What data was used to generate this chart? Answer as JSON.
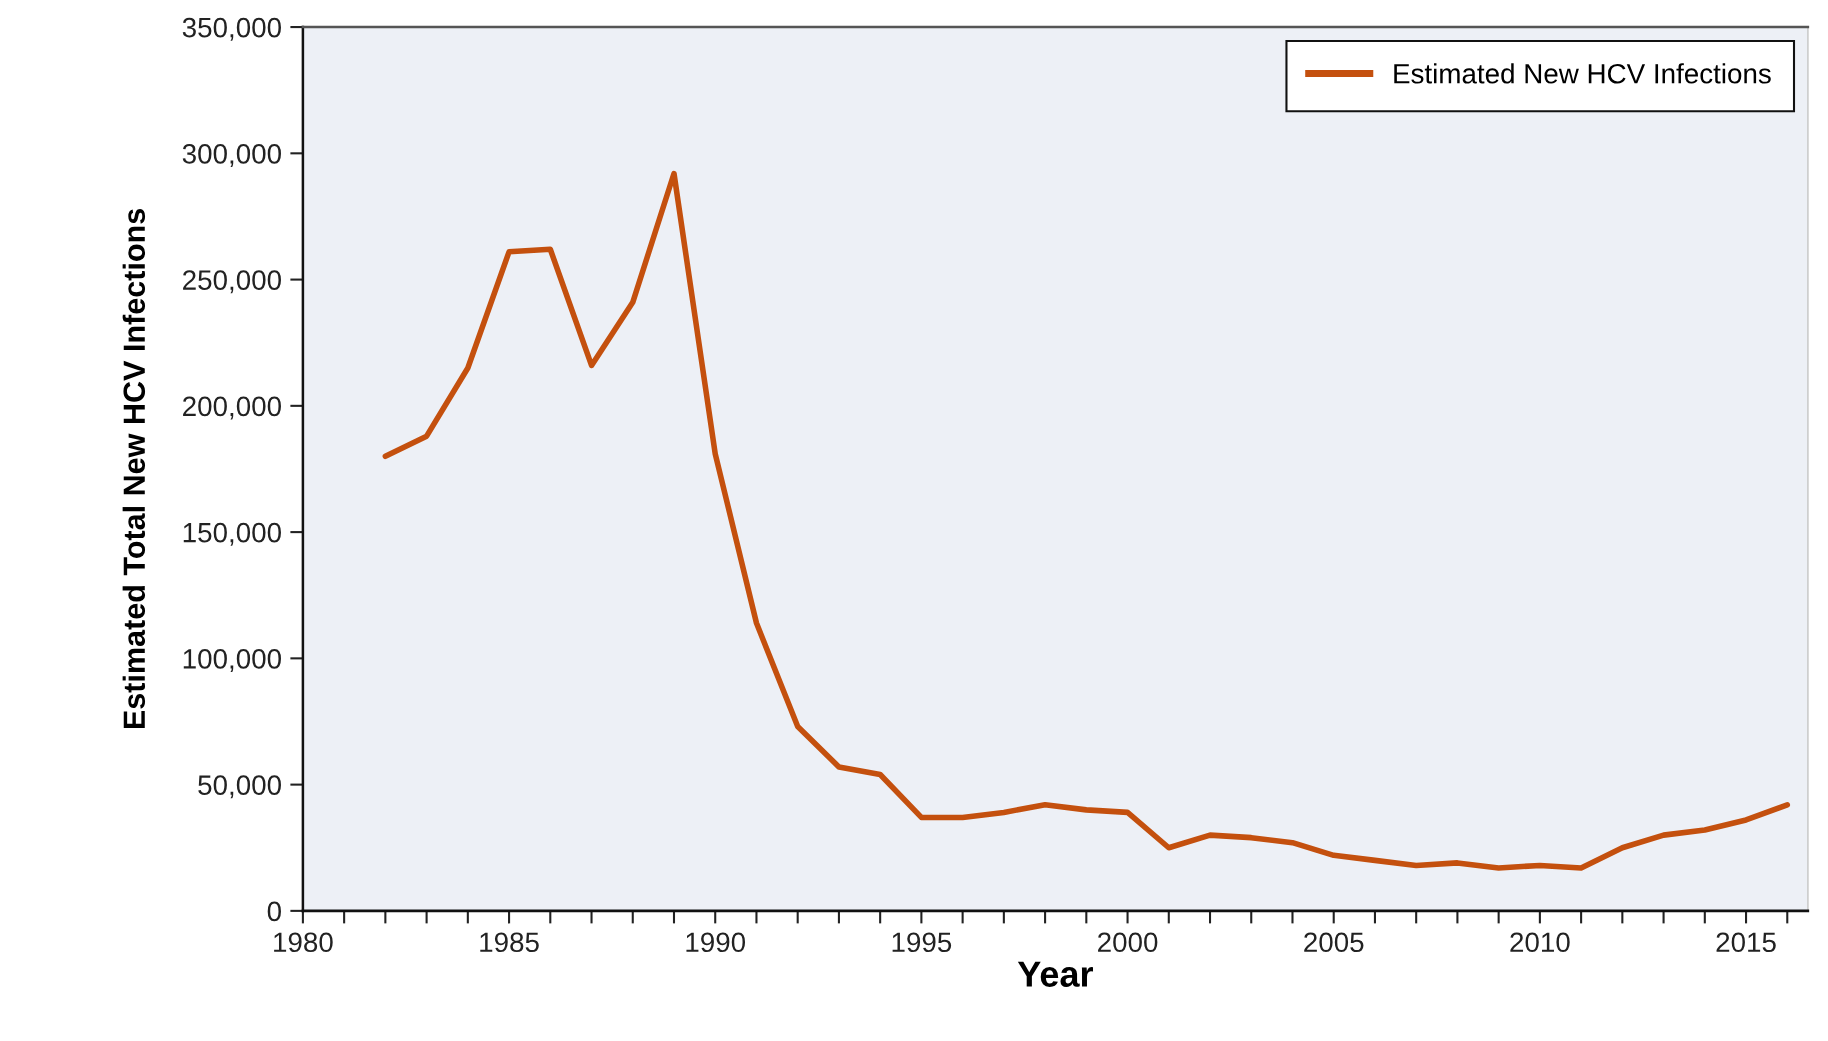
{
  "chart_data": {
    "type": "line",
    "xlabel": "Year",
    "ylabel": "Estimated Total New HCV Infections",
    "x": [
      1982,
      1983,
      1984,
      1985,
      1986,
      1987,
      1988,
      1989,
      1990,
      1991,
      1992,
      1993,
      1994,
      1995,
      1996,
      1997,
      1998,
      1999,
      2000,
      2001,
      2002,
      2003,
      2004,
      2005,
      2006,
      2007,
      2008,
      2009,
      2010,
      2011,
      2012,
      2013,
      2014,
      2015,
      2016
    ],
    "series": [
      {
        "name": "Estimated New HCV Infections",
        "color": "#c4500e",
        "values": [
          180000,
          188000,
          215000,
          261000,
          262000,
          216000,
          241000,
          292000,
          181000,
          114000,
          73000,
          57000,
          54000,
          37000,
          37000,
          39000,
          42000,
          40000,
          39000,
          25000,
          30000,
          29000,
          27000,
          22000,
          20000,
          18000,
          19000,
          17000,
          18000,
          17000,
          25000,
          30000,
          32000,
          36000,
          42000
        ]
      }
    ],
    "xlim": [
      1980,
      2016.5
    ],
    "xticks": [
      1980,
      {
        "value": 1981,
        "label": null
      },
      {
        "value": 1982,
        "label": null
      },
      {
        "value": 1983,
        "label": null
      },
      {
        "value": 1984,
        "label": null
      },
      1985,
      {
        "value": 1986,
        "label": null
      },
      {
        "value": 1987,
        "label": null
      },
      {
        "value": 1988,
        "label": null
      },
      {
        "value": 1989,
        "label": null
      },
      1990,
      {
        "value": 1991,
        "label": null
      },
      {
        "value": 1992,
        "label": null
      },
      {
        "value": 1993,
        "label": null
      },
      {
        "value": 1994,
        "label": null
      },
      1995,
      {
        "value": 1996,
        "label": null
      },
      {
        "value": 1997,
        "label": null
      },
      {
        "value": 1998,
        "label": null
      },
      {
        "value": 1999,
        "label": null
      },
      2000,
      {
        "value": 2001,
        "label": null
      },
      {
        "value": 2002,
        "label": null
      },
      {
        "value": 2003,
        "label": null
      },
      {
        "value": 2004,
        "label": null
      },
      2005,
      {
        "value": 2006,
        "label": null
      },
      {
        "value": 2007,
        "label": null
      },
      {
        "value": 2008,
        "label": null
      },
      {
        "value": 2009,
        "label": null
      },
      2010,
      {
        "value": 2011,
        "label": null
      },
      {
        "value": 2012,
        "label": null
      },
      {
        "value": 2013,
        "label": null
      },
      {
        "value": 2014,
        "label": null
      },
      2015,
      {
        "value": 2016,
        "label": null
      }
    ],
    "ylim": [
      0,
      350000
    ],
    "yticks": [
      0,
      {
        "value": 50000,
        "label": "50,000"
      },
      {
        "value": 100000,
        "label": "100,000"
      },
      {
        "value": 150000,
        "label": "150,000"
      },
      {
        "value": 200000,
        "label": "200,000"
      },
      {
        "value": 250000,
        "label": "250,000"
      },
      {
        "value": 300000,
        "label": "300,000"
      },
      {
        "value": 350000,
        "label": "350,000"
      }
    ],
    "grid": false,
    "legend": "top right",
    "marker": "none",
    "line_style": "solid"
  }
}
